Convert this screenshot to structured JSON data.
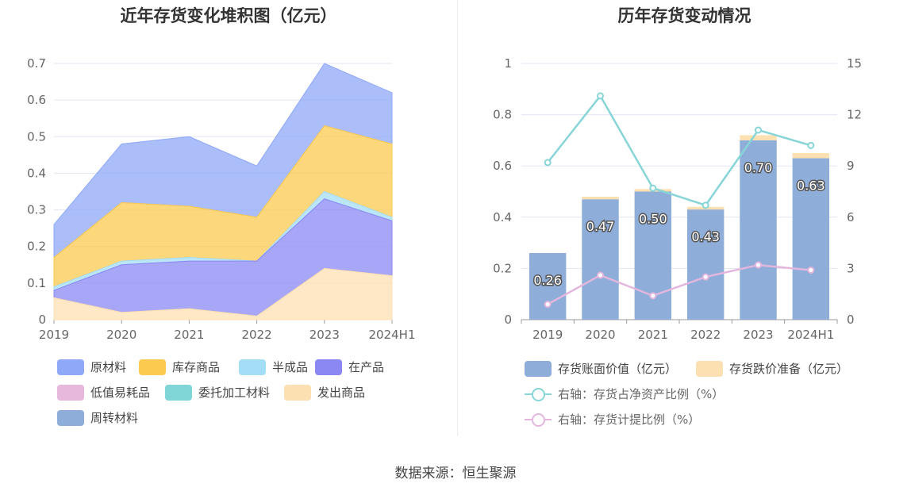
{
  "source": "数据来源：恒生聚源",
  "chart_data": [
    {
      "type": "area",
      "stacked": true,
      "title": "近年存货变化堆积图（亿元）",
      "x": [
        "2019",
        "2020",
        "2021",
        "2022",
        "2023",
        "2024H1"
      ],
      "ylim": [
        0,
        0.7
      ],
      "yticks": [
        "0",
        "0.1",
        "0.2",
        "0.3",
        "0.4",
        "0.5",
        "0.6",
        "0.7"
      ],
      "grid": true,
      "legend_position": "bottom",
      "series": [
        {
          "name": "原材料",
          "color": "#8fa8f8",
          "values": [
            0.09,
            0.16,
            0.19,
            0.14,
            0.17,
            0.14
          ]
        },
        {
          "name": "库存商品",
          "color": "#fcca4f",
          "values": [
            0.08,
            0.16,
            0.14,
            0.12,
            0.18,
            0.2
          ]
        },
        {
          "name": "半成品",
          "color": "#a3ddf6",
          "values": [
            0.01,
            0.01,
            0.01,
            0.0,
            0.02,
            0.01
          ]
        },
        {
          "name": "在产品",
          "color": "#8b88f3",
          "values": [
            0.02,
            0.13,
            0.13,
            0.15,
            0.19,
            0.15
          ]
        },
        {
          "name": "低值易耗品",
          "color": "#e8b7dc",
          "values": [
            0,
            0,
            0,
            0,
            0,
            0
          ]
        },
        {
          "name": "委托加工材料",
          "color": "#80d5d6",
          "values": [
            0,
            0,
            0,
            0,
            0,
            0
          ]
        },
        {
          "name": "发出商品",
          "color": "#fde0b2",
          "values": [
            0.06,
            0.02,
            0.03,
            0.01,
            0.14,
            0.12
          ]
        },
        {
          "name": "周转材料",
          "color": "#8fadd9",
          "values": [
            0,
            0,
            0,
            0,
            0,
            0
          ]
        }
      ]
    },
    {
      "type": "bar",
      "title": "历年存货变动情况",
      "x": [
        "2019",
        "2020",
        "2021",
        "2022",
        "2023",
        "2024H1"
      ],
      "ylim": [
        0,
        1
      ],
      "yticks": [
        "0",
        "0.2",
        "0.4",
        "0.6",
        "0.8",
        "1"
      ],
      "y2lim": [
        0,
        15
      ],
      "y2ticks": [
        "0",
        "3",
        "6",
        "9",
        "12",
        "15"
      ],
      "grid": true,
      "legend_position": "bottom",
      "series": [
        {
          "name": "存货账面价值（亿元）",
          "kind": "bar",
          "color": "#8fadd9",
          "values": [
            0.26,
            0.47,
            0.5,
            0.43,
            0.7,
            0.63
          ],
          "labels": [
            "0.26",
            "0.47",
            "0.50",
            "0.43",
            "0.70",
            "0.63"
          ]
        },
        {
          "name": "存货跌价准备（亿元）",
          "kind": "bar-stack",
          "color": "#fde0b2",
          "values": [
            0.0,
            0.01,
            0.01,
            0.01,
            0.02,
            0.02
          ]
        },
        {
          "name": "右轴：存货占净资产比例（%）",
          "kind": "line",
          "axis": "right",
          "color": "#88d5d7",
          "values": [
            9.2,
            13.1,
            7.7,
            6.7,
            11.1,
            10.2
          ]
        },
        {
          "name": "右轴：存货计提比例（%）",
          "kind": "line",
          "axis": "right",
          "color": "#e3b6dd",
          "values": [
            0.9,
            2.6,
            1.4,
            2.5,
            3.2,
            2.9
          ]
        }
      ]
    }
  ]
}
